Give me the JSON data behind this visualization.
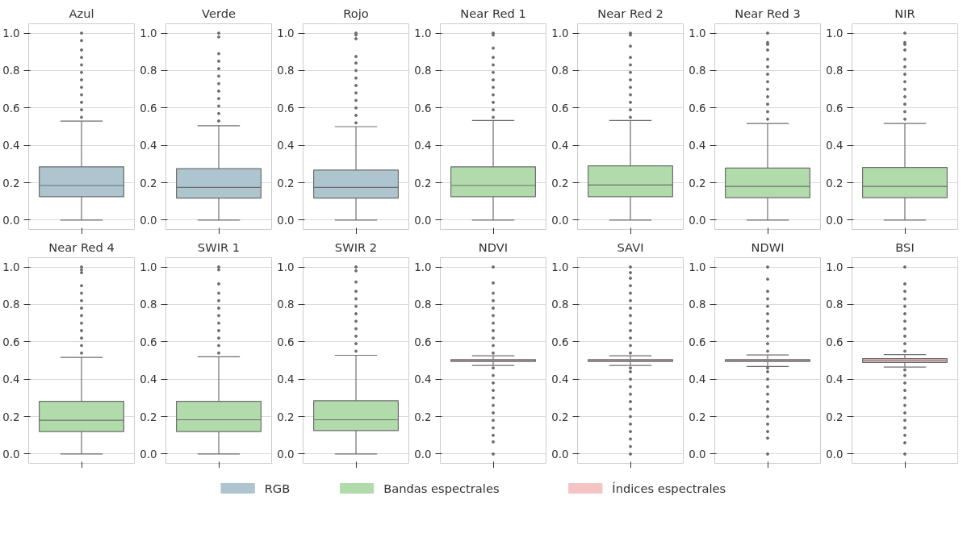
{
  "chart_data": [
    {
      "type": "box",
      "title": "Azul",
      "categories": [
        null
      ],
      "ylim": [
        -0.05,
        1.05
      ],
      "yticks": [
        {
          "value": 0,
          "label": "0.0"
        },
        {
          "value": 0.2,
          "label": "0.2"
        },
        {
          "value": 0.4,
          "label": "0.4"
        },
        {
          "value": 0.6,
          "label": "0.6"
        },
        {
          "value": 0.8,
          "label": "0.8"
        },
        {
          "value": 1,
          "label": "1.0"
        }
      ],
      "grid": "y",
      "legend": "bottom",
      "series": [
        {
          "name": "RGB",
          "color": "#aec4ce",
          "boxes": [
            {
              "low": 0,
              "q1": 0.125,
              "median": 0.185,
              "q3": 0.285,
              "high": 0.53,
              "outliers": [
                0.55,
                0.59,
                0.63,
                0.67,
                0.71,
                0.75,
                0.79,
                0.83,
                0.87,
                0.91,
                0.96,
                1.0
              ]
            }
          ]
        }
      ]
    },
    {
      "type": "box",
      "title": "Verde",
      "categories": [
        null
      ],
      "ylim": [
        -0.05,
        1.05
      ],
      "yticks": [
        {
          "value": 0,
          "label": "0.0"
        },
        {
          "value": 0.2,
          "label": "0.2"
        },
        {
          "value": 0.4,
          "label": "0.4"
        },
        {
          "value": 0.6,
          "label": "0.6"
        },
        {
          "value": 0.8,
          "label": "0.8"
        },
        {
          "value": 1,
          "label": "1.0"
        }
      ],
      "grid": "y",
      "legend": "bottom",
      "series": [
        {
          "name": "RGB",
          "color": "#aec4ce",
          "boxes": [
            {
              "low": 0,
              "q1": 0.118,
              "median": 0.175,
              "q3": 0.275,
              "high": 0.505,
              "outliers": [
                0.53,
                0.57,
                0.61,
                0.65,
                0.69,
                0.73,
                0.77,
                0.81,
                0.85,
                0.89,
                0.98,
                1.0
              ]
            }
          ]
        }
      ]
    },
    {
      "type": "box",
      "title": "Rojo",
      "categories": [
        null
      ],
      "ylim": [
        -0.05,
        1.05
      ],
      "yticks": [
        {
          "value": 0,
          "label": "0.0"
        },
        {
          "value": 0.2,
          "label": "0.2"
        },
        {
          "value": 0.4,
          "label": "0.4"
        },
        {
          "value": 0.6,
          "label": "0.6"
        },
        {
          "value": 0.8,
          "label": "0.8"
        },
        {
          "value": 1,
          "label": "1.0"
        }
      ],
      "grid": "y",
      "legend": "bottom",
      "series": [
        {
          "name": "RGB",
          "color": "#aec4ce",
          "boxes": [
            {
              "low": 0,
              "q1": 0.118,
              "median": 0.175,
              "q3": 0.268,
              "high": 0.5,
              "outliers": [
                0.52,
                0.56,
                0.6,
                0.64,
                0.68,
                0.72,
                0.76,
                0.8,
                0.84,
                0.875,
                0.97,
                0.99,
                1.0
              ]
            }
          ]
        }
      ]
    },
    {
      "type": "box",
      "title": "Near Red 1",
      "categories": [
        null
      ],
      "ylim": [
        -0.05,
        1.05
      ],
      "yticks": [
        {
          "value": 0,
          "label": "0.0"
        },
        {
          "value": 0.2,
          "label": "0.2"
        },
        {
          "value": 0.4,
          "label": "0.4"
        },
        {
          "value": 0.6,
          "label": "0.6"
        },
        {
          "value": 0.8,
          "label": "0.8"
        },
        {
          "value": 1,
          "label": "1.0"
        }
      ],
      "grid": "y",
      "legend": "bottom",
      "series": [
        {
          "name": "Bandas espectrales",
          "color": "#b2dbac",
          "boxes": [
            {
              "low": 0,
              "q1": 0.125,
              "median": 0.185,
              "q3": 0.285,
              "high": 0.533,
              "outliers": [
                0.55,
                0.59,
                0.63,
                0.67,
                0.71,
                0.75,
                0.79,
                0.83,
                0.87,
                0.92,
                0.99,
                1.0
              ]
            }
          ]
        }
      ]
    },
    {
      "type": "box",
      "title": "Near Red 2",
      "categories": [
        null
      ],
      "ylim": [
        -0.05,
        1.05
      ],
      "yticks": [
        {
          "value": 0,
          "label": "0.0"
        },
        {
          "value": 0.2,
          "label": "0.2"
        },
        {
          "value": 0.4,
          "label": "0.4"
        },
        {
          "value": 0.6,
          "label": "0.6"
        },
        {
          "value": 0.8,
          "label": "0.8"
        },
        {
          "value": 1,
          "label": "1.0"
        }
      ],
      "grid": "y",
      "legend": "bottom",
      "series": [
        {
          "name": "Bandas espectrales",
          "color": "#b2dbac",
          "boxes": [
            {
              "low": 0,
              "q1": 0.125,
              "median": 0.188,
              "q3": 0.29,
              "high": 0.533,
              "outliers": [
                0.55,
                0.59,
                0.63,
                0.67,
                0.71,
                0.75,
                0.79,
                0.83,
                0.87,
                0.93,
                0.99,
                1.0
              ]
            }
          ]
        }
      ]
    },
    {
      "type": "box",
      "title": "Near Red 3",
      "categories": [
        null
      ],
      "ylim": [
        -0.05,
        1.05
      ],
      "yticks": [
        {
          "value": 0,
          "label": "0.0"
        },
        {
          "value": 0.2,
          "label": "0.2"
        },
        {
          "value": 0.4,
          "label": "0.4"
        },
        {
          "value": 0.6,
          "label": "0.6"
        },
        {
          "value": 0.8,
          "label": "0.8"
        },
        {
          "value": 1,
          "label": "1.0"
        }
      ],
      "grid": "y",
      "legend": "bottom",
      "series": [
        {
          "name": "Bandas espectrales",
          "color": "#b2dbac",
          "boxes": [
            {
              "low": 0,
              "q1": 0.12,
              "median": 0.18,
              "q3": 0.278,
              "high": 0.517,
              "outliers": [
                0.54,
                0.58,
                0.62,
                0.66,
                0.7,
                0.74,
                0.78,
                0.82,
                0.86,
                0.91,
                0.94,
                0.95,
                1.0
              ]
            }
          ]
        }
      ]
    },
    {
      "type": "box",
      "title": "NIR",
      "categories": [
        null
      ],
      "ylim": [
        -0.05,
        1.05
      ],
      "yticks": [
        {
          "value": 0,
          "label": "0.0"
        },
        {
          "value": 0.2,
          "label": "0.2"
        },
        {
          "value": 0.4,
          "label": "0.4"
        },
        {
          "value": 0.6,
          "label": "0.6"
        },
        {
          "value": 0.8,
          "label": "0.8"
        },
        {
          "value": 1,
          "label": "1.0"
        }
      ],
      "grid": "y",
      "legend": "bottom",
      "series": [
        {
          "name": "Bandas espectrales",
          "color": "#b2dbac",
          "boxes": [
            {
              "low": 0,
              "q1": 0.12,
              "median": 0.18,
              "q3": 0.282,
              "high": 0.517,
              "outliers": [
                0.54,
                0.58,
                0.62,
                0.66,
                0.7,
                0.74,
                0.78,
                0.82,
                0.86,
                0.91,
                0.94,
                0.95,
                1.0
              ]
            }
          ]
        }
      ]
    },
    {
      "type": "box",
      "title": "Near Red 4",
      "categories": [
        null
      ],
      "ylim": [
        -0.05,
        1.05
      ],
      "yticks": [
        {
          "value": 0,
          "label": "0.0"
        },
        {
          "value": 0.2,
          "label": "0.2"
        },
        {
          "value": 0.4,
          "label": "0.4"
        },
        {
          "value": 0.6,
          "label": "0.6"
        },
        {
          "value": 0.8,
          "label": "0.8"
        },
        {
          "value": 1,
          "label": "1.0"
        }
      ],
      "grid": "y",
      "legend": "bottom",
      "series": [
        {
          "name": "Bandas espectrales",
          "color": "#b2dbac",
          "boxes": [
            {
              "low": 0,
              "q1": 0.12,
              "median": 0.18,
              "q3": 0.282,
              "high": 0.517,
              "outliers": [
                0.54,
                0.58,
                0.62,
                0.66,
                0.7,
                0.74,
                0.78,
                0.82,
                0.86,
                0.9,
                0.97,
                0.985,
                1.0
              ]
            }
          ]
        }
      ]
    },
    {
      "type": "box",
      "title": "SWIR 1",
      "categories": [
        null
      ],
      "ylim": [
        -0.05,
        1.05
      ],
      "yticks": [
        {
          "value": 0,
          "label": "0.0"
        },
        {
          "value": 0.2,
          "label": "0.2"
        },
        {
          "value": 0.4,
          "label": "0.4"
        },
        {
          "value": 0.6,
          "label": "0.6"
        },
        {
          "value": 0.8,
          "label": "0.8"
        },
        {
          "value": 1,
          "label": "1.0"
        }
      ],
      "grid": "y",
      "legend": "bottom",
      "series": [
        {
          "name": "Bandas espectrales",
          "color": "#b2dbac",
          "boxes": [
            {
              "low": 0,
              "q1": 0.12,
              "median": 0.183,
              "q3": 0.282,
              "high": 0.52,
              "outliers": [
                0.54,
                0.58,
                0.62,
                0.66,
                0.7,
                0.74,
                0.78,
                0.82,
                0.86,
                0.91,
                0.985,
                1.0
              ]
            }
          ]
        }
      ]
    },
    {
      "type": "box",
      "title": "SWIR 2",
      "categories": [
        null
      ],
      "ylim": [
        -0.05,
        1.05
      ],
      "yticks": [
        {
          "value": 0,
          "label": "0.0"
        },
        {
          "value": 0.2,
          "label": "0.2"
        },
        {
          "value": 0.4,
          "label": "0.4"
        },
        {
          "value": 0.6,
          "label": "0.6"
        },
        {
          "value": 0.8,
          "label": "0.8"
        },
        {
          "value": 1,
          "label": "1.0"
        }
      ],
      "grid": "y",
      "legend": "bottom",
      "series": [
        {
          "name": "Bandas espectrales",
          "color": "#b2dbac",
          "boxes": [
            {
              "low": 0,
              "q1": 0.125,
              "median": 0.183,
              "q3": 0.285,
              "high": 0.528,
              "outliers": [
                0.55,
                0.59,
                0.63,
                0.67,
                0.71,
                0.75,
                0.79,
                0.83,
                0.87,
                0.92,
                0.98,
                1.0
              ]
            }
          ]
        }
      ]
    },
    {
      "type": "box",
      "title": "NDVI",
      "categories": [
        null
      ],
      "ylim": [
        -0.05,
        1.05
      ],
      "yticks": [
        {
          "value": 0,
          "label": "0.0"
        },
        {
          "value": 0.2,
          "label": "0.2"
        },
        {
          "value": 0.4,
          "label": "0.4"
        },
        {
          "value": 0.6,
          "label": "0.6"
        },
        {
          "value": 0.8,
          "label": "0.8"
        },
        {
          "value": 1,
          "label": "1.0"
        }
      ],
      "grid": "y",
      "legend": "bottom",
      "series": [
        {
          "name": "Índices espectrales",
          "color": "#f4c4c4",
          "boxes": [
            {
              "low": 0.474,
              "q1": 0.495,
              "median": 0.5,
              "q3": 0.505,
              "high": 0.525,
              "outliers": [
                0.0,
                0.065,
                0.1,
                0.14,
                0.18,
                0.22,
                0.26,
                0.3,
                0.34,
                0.38,
                0.42,
                0.46,
                0.54,
                0.58,
                0.62,
                0.66,
                0.7,
                0.74,
                0.78,
                0.82,
                0.86,
                0.915,
                1.0
              ]
            }
          ]
        }
      ]
    },
    {
      "type": "box",
      "title": "SAVI",
      "categories": [
        null
      ],
      "ylim": [
        -0.05,
        1.05
      ],
      "yticks": [
        {
          "value": 0,
          "label": "0.0"
        },
        {
          "value": 0.2,
          "label": "0.2"
        },
        {
          "value": 0.4,
          "label": "0.4"
        },
        {
          "value": 0.6,
          "label": "0.6"
        },
        {
          "value": 0.8,
          "label": "0.8"
        },
        {
          "value": 1,
          "label": "1.0"
        }
      ],
      "grid": "y",
      "legend": "bottom",
      "series": [
        {
          "name": "Índices espectrales",
          "color": "#f4c4c4",
          "boxes": [
            {
              "low": 0.474,
              "q1": 0.495,
              "median": 0.5,
              "q3": 0.505,
              "high": 0.525,
              "outliers": [
                0.0,
                0.04,
                0.08,
                0.12,
                0.16,
                0.2,
                0.24,
                0.28,
                0.32,
                0.36,
                0.4,
                0.44,
                0.46,
                0.54,
                0.58,
                0.62,
                0.66,
                0.7,
                0.74,
                0.78,
                0.82,
                0.86,
                0.9,
                0.94,
                0.97,
                1.0
              ]
            }
          ]
        }
      ]
    },
    {
      "type": "box",
      "title": "NDWI",
      "categories": [
        null
      ],
      "ylim": [
        -0.05,
        1.05
      ],
      "yticks": [
        {
          "value": 0,
          "label": "0.0"
        },
        {
          "value": 0.2,
          "label": "0.2"
        },
        {
          "value": 0.4,
          "label": "0.4"
        },
        {
          "value": 0.6,
          "label": "0.6"
        },
        {
          "value": 0.8,
          "label": "0.8"
        },
        {
          "value": 1,
          "label": "1.0"
        }
      ],
      "grid": "y",
      "legend": "bottom",
      "series": [
        {
          "name": "Índices espectrales",
          "color": "#f4c4c4",
          "boxes": [
            {
              "low": 0.468,
              "q1": 0.495,
              "median": 0.5,
              "q3": 0.505,
              "high": 0.53,
              "outliers": [
                0.0,
                0.085,
                0.12,
                0.16,
                0.2,
                0.24,
                0.28,
                0.32,
                0.36,
                0.4,
                0.44,
                0.46,
                0.55,
                0.59,
                0.63,
                0.67,
                0.71,
                0.75,
                0.79,
                0.83,
                0.87,
                0.935,
                1.0
              ]
            }
          ]
        }
      ]
    },
    {
      "type": "box",
      "title": "BSI",
      "categories": [
        null
      ],
      "ylim": [
        -0.05,
        1.05
      ],
      "yticks": [
        {
          "value": 0,
          "label": "0.0"
        },
        {
          "value": 0.2,
          "label": "0.2"
        },
        {
          "value": 0.4,
          "label": "0.4"
        },
        {
          "value": 0.6,
          "label": "0.6"
        },
        {
          "value": 0.8,
          "label": "0.8"
        },
        {
          "value": 1,
          "label": "1.0"
        }
      ],
      "grid": "y",
      "legend": "bottom",
      "series": [
        {
          "name": "Índices espectrales",
          "color": "#f4c4c4",
          "boxes": [
            {
              "low": 0.465,
              "q1": 0.49,
              "median": 0.5,
              "q3": 0.51,
              "high": 0.532,
              "outliers": [
                0.0,
                0.06,
                0.1,
                0.14,
                0.18,
                0.22,
                0.26,
                0.3,
                0.34,
                0.38,
                0.42,
                0.45,
                0.55,
                0.59,
                0.63,
                0.67,
                0.71,
                0.75,
                0.79,
                0.83,
                0.87,
                0.91,
                1.0
              ]
            }
          ]
        }
      ]
    }
  ]
}
